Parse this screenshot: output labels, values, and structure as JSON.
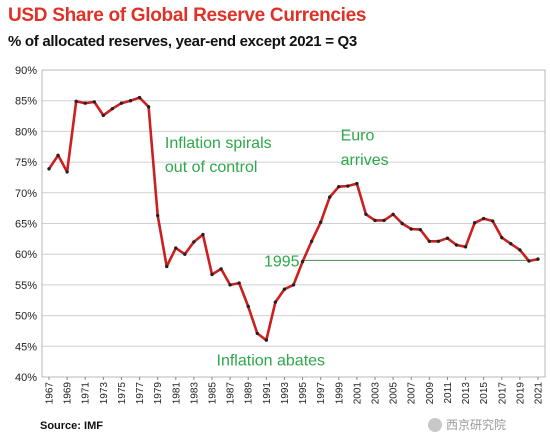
{
  "title": "USD Share of Global  Reserve Currencies",
  "subtitle": "% of allocated reserves, year-end except 2021 = Q3",
  "source": "Source: IMF",
  "watermark": "西京研究院",
  "colors": {
    "title": "#e03127",
    "line": "#cc1f1f",
    "marker": "#222222",
    "annotation": "#2ea84a",
    "refline": "#4a8a4a",
    "grid": "#d0d0d0"
  },
  "chart_data": {
    "type": "line",
    "title": "USD Share of Global  Reserve Currencies",
    "ylim": [
      40,
      90
    ],
    "yticks": [
      40,
      45,
      50,
      55,
      60,
      65,
      70,
      75,
      80,
      85,
      90
    ],
    "ytick_labels": [
      "40%",
      "45%",
      "50%",
      "55%",
      "60%",
      "65%",
      "70%",
      "75%",
      "80%",
      "85%",
      "90%"
    ],
    "xlim": [
      1967,
      2021
    ],
    "xticks": [
      1967,
      1969,
      1971,
      1973,
      1975,
      1977,
      1979,
      1981,
      1983,
      1985,
      1987,
      1989,
      1991,
      1993,
      1995,
      1997,
      1999,
      2001,
      2003,
      2005,
      2007,
      2009,
      2011,
      2013,
      2015,
      2017,
      2019,
      2021
    ],
    "grid": "horizontal",
    "series": [
      {
        "x": [
          1967,
          1968,
          1969,
          1970,
          1971,
          1972,
          1973,
          1974,
          1975,
          1976,
          1977,
          1978,
          1979,
          1980,
          1981,
          1982,
          1983,
          1984,
          1985,
          1986,
          1987,
          1988,
          1989,
          1990,
          1991,
          1992,
          1993,
          1994,
          1995,
          1996,
          1997,
          1998,
          1999,
          2000,
          2001,
          2002,
          2003,
          2004,
          2005,
          2006,
          2007,
          2008,
          2009,
          2010,
          2011,
          2012,
          2013,
          2014,
          2015,
          2016,
          2017,
          2018,
          2019,
          2020,
          2021
        ],
        "values": [
          73.9,
          76.1,
          73.4,
          84.9,
          84.6,
          84.8,
          82.6,
          83.7,
          84.6,
          85.0,
          85.5,
          84.0,
          66.3,
          58.0,
          61.0,
          60.0,
          62.0,
          63.2,
          56.7,
          57.6,
          55.0,
          55.3,
          51.5,
          47.1,
          46.0,
          52.2,
          54.3,
          55.0,
          58.8,
          62.1,
          65.2,
          69.3,
          71.0,
          71.1,
          71.5,
          66.5,
          65.5,
          65.5,
          66.5,
          65.0,
          64.1,
          64.0,
          62.1,
          62.1,
          62.6,
          61.5,
          61.2,
          65.1,
          65.8,
          65.4,
          62.7,
          61.7,
          60.7,
          58.9,
          59.2
        ]
      }
    ],
    "reference_line": {
      "y": 59.0,
      "from_x": 1995,
      "to_x": 2021,
      "label": "1995"
    },
    "annotations": [
      {
        "text": "Inflation spirals",
        "x": 1979.8,
        "y": 77.3
      },
      {
        "text": "out of control",
        "x": 1979.8,
        "y": 73.4
      },
      {
        "text": "Euro",
        "x": 1999.2,
        "y": 78.5
      },
      {
        "text": "arrives",
        "x": 1999.2,
        "y": 74.5
      },
      {
        "text": "Inflation abates",
        "x": 1985.5,
        "y": 41.9
      }
    ]
  }
}
